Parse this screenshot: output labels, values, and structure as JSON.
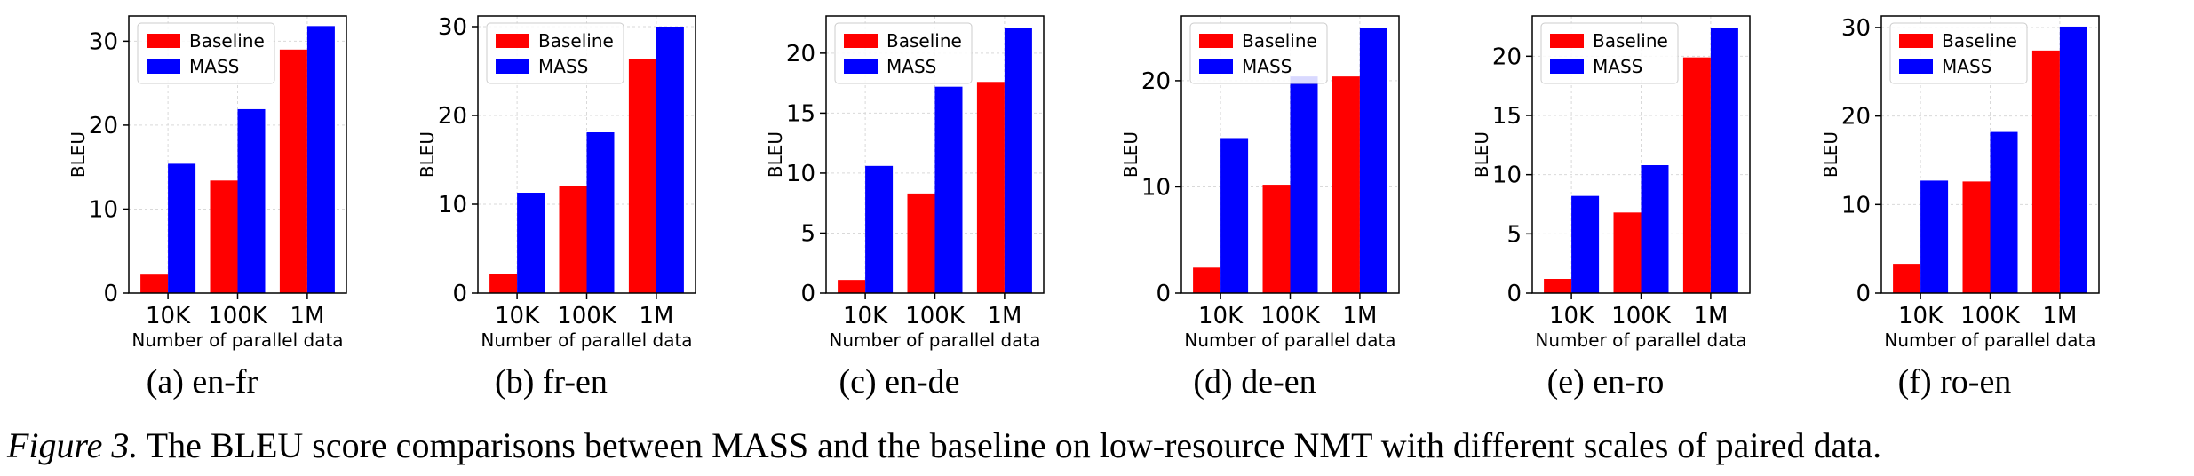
{
  "chart_data": [
    {
      "panel": "a",
      "type": "bar",
      "subcaption": "(a) en-fr",
      "xlabel": "Number of parallel data",
      "ylabel": "BLEU",
      "categories": [
        "10K",
        "100K",
        "1M"
      ],
      "ylim": [
        0,
        33
      ],
      "yticks": [
        0,
        10,
        20,
        30
      ],
      "grid": true,
      "legend_loc": "upper-left",
      "series": [
        {
          "name": "Baseline",
          "color": "#ff0000",
          "values": [
            2.2,
            13.4,
            29.0
          ]
        },
        {
          "name": "MASS",
          "color": "#0000ff",
          "values": [
            15.4,
            21.9,
            31.8
          ]
        }
      ]
    },
    {
      "panel": "b",
      "type": "bar",
      "subcaption": "(b) fr-en",
      "xlabel": "Number of parallel data",
      "ylabel": "BLEU",
      "categories": [
        "10K",
        "100K",
        "1M"
      ],
      "ylim": [
        0,
        31.2
      ],
      "yticks": [
        0,
        10,
        20,
        30
      ],
      "grid": true,
      "legend_loc": "upper-left",
      "series": [
        {
          "name": "Baseline",
          "color": "#ff0000",
          "values": [
            2.1,
            12.1,
            26.4
          ]
        },
        {
          "name": "MASS",
          "color": "#0000ff",
          "values": [
            11.3,
            18.1,
            30.0
          ]
        }
      ]
    },
    {
      "panel": "c",
      "type": "bar",
      "subcaption": "(c) en-de",
      "xlabel": "Number of parallel data",
      "ylabel": "BLEU",
      "categories": [
        "10K",
        "100K",
        "1M"
      ],
      "ylim": [
        0,
        23.1
      ],
      "yticks": [
        0,
        5,
        10,
        15,
        20
      ],
      "grid": true,
      "legend_loc": "upper-left",
      "series": [
        {
          "name": "Baseline",
          "color": "#ff0000",
          "values": [
            1.1,
            8.3,
            17.6
          ]
        },
        {
          "name": "MASS",
          "color": "#0000ff",
          "values": [
            10.6,
            17.2,
            22.1
          ]
        }
      ]
    },
    {
      "panel": "d",
      "type": "bar",
      "subcaption": "(d) de-en",
      "xlabel": "Number of parallel data",
      "ylabel": "BLEU",
      "categories": [
        "10K",
        "100K",
        "1M"
      ],
      "ylim": [
        0,
        26.1
      ],
      "yticks": [
        0,
        10,
        20
      ],
      "grid": true,
      "legend_loc": "upper-left",
      "series": [
        {
          "name": "Baseline",
          "color": "#ff0000",
          "values": [
            2.4,
            10.2,
            20.4
          ]
        },
        {
          "name": "MASS",
          "color": "#0000ff",
          "values": [
            14.6,
            20.4,
            25.0
          ]
        }
      ]
    },
    {
      "panel": "e",
      "type": "bar",
      "subcaption": "(e) en-ro",
      "xlabel": "Number of parallel data",
      "ylabel": "BLEU",
      "categories": [
        "10K",
        "100K",
        "1M"
      ],
      "ylim": [
        0,
        23.4
      ],
      "yticks": [
        0,
        5,
        10,
        15,
        20
      ],
      "grid": true,
      "legend_loc": "upper-left",
      "series": [
        {
          "name": "Baseline",
          "color": "#ff0000",
          "values": [
            1.2,
            6.8,
            19.9
          ]
        },
        {
          "name": "MASS",
          "color": "#0000ff",
          "values": [
            8.2,
            10.8,
            22.4
          ]
        }
      ]
    },
    {
      "panel": "f",
      "type": "bar",
      "subcaption": "(f) ro-en",
      "xlabel": "Number of parallel data",
      "ylabel": "BLEU",
      "categories": [
        "10K",
        "100K",
        "1M"
      ],
      "ylim": [
        0,
        31.3
      ],
      "yticks": [
        0,
        10,
        20,
        30
      ],
      "grid": true,
      "legend_loc": "upper-left",
      "series": [
        {
          "name": "Baseline",
          "color": "#ff0000",
          "values": [
            3.3,
            12.6,
            27.4
          ]
        },
        {
          "name": "MASS",
          "color": "#0000ff",
          "values": [
            12.7,
            18.2,
            30.1
          ]
        }
      ]
    }
  ],
  "caption": {
    "label": "Figure 3.",
    "text": " The BLEU score comparisons between MASS and the baseline on low-resource NMT with different scales of paired data."
  }
}
